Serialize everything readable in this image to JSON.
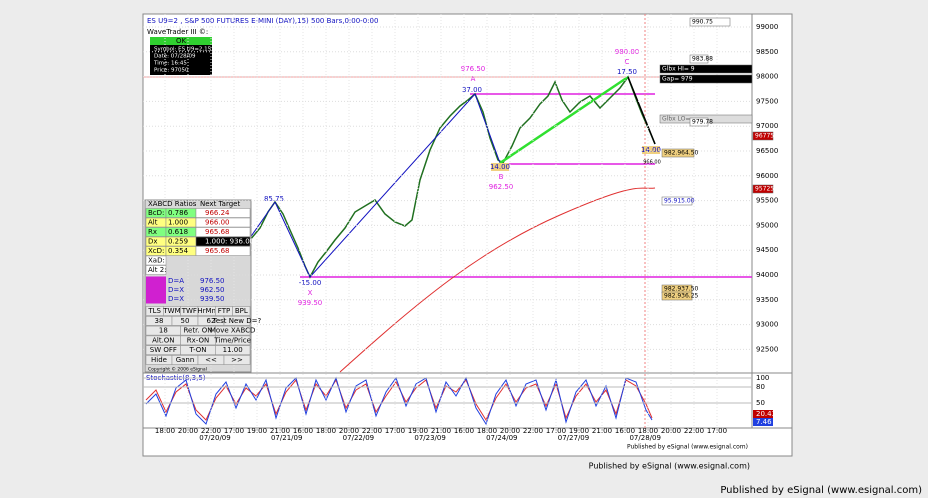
{
  "header": {
    "title": "ES U9=2 , S&P 500 FUTURES E-MINI (DAY),15) 500 Bars,0:00-0:00",
    "indicator": "WaveTrader III ©:"
  },
  "info_box": {
    "status": "OK",
    "lines": [
      "Symbol: ES U9=2,15",
      "Date: 07/28/09",
      "Time: 16:45",
      "Price: 97050"
    ]
  },
  "price_axis": [
    "99000",
    "98500",
    "98000",
    "97500",
    "97000",
    "96500",
    "96000",
    "95500",
    "95000",
    "94500",
    "94000",
    "93500",
    "93000",
    "92500"
  ],
  "stoch_axis": [
    "100",
    "80",
    "50",
    "20.43",
    "7.46"
  ],
  "time_axis": [
    "18:00",
    "20:00",
    "22:00",
    "17:00",
    "19:00",
    "21:00",
    "16:00",
    "18:00",
    "20:00",
    "22:00",
    "17:00",
    "19:00",
    "21:00",
    "16:00",
    "18:00",
    "20:00",
    "22:00",
    "17:00",
    "19:00",
    "21:00",
    "16:00",
    "18:00",
    "20:00",
    "22:00",
    "17:00"
  ],
  "dates": [
    "07/20/09",
    "07/21/09",
    "07/22/09",
    "07/23/09",
    "07/24/09",
    "07/27/09",
    "07/28/09"
  ],
  "annotations": [
    "976.50",
    "A",
    "37.00",
    "85.75",
    "-15.00",
    "X",
    "939.50",
    "14.00",
    "B",
    "962.50",
    "980.00",
    "C",
    "17.50",
    "14.00",
    "966.00"
  ],
  "right_boxes": [
    "Glbx HI= 9",
    "Gap= 979",
    "Glbx LO=",
    "990.75",
    "983.88",
    "979.78",
    "96775",
    "982.964.50",
    "95725",
    "95.915.00",
    "982.937.50",
    "982.936.25"
  ],
  "table": {
    "title": "XABCD Ratios",
    "target": "Next Target",
    "rows": [
      [
        "BcD:",
        "0.786",
        "966.24"
      ],
      [
        "Alt",
        "1.000",
        "966.00"
      ],
      [
        "Rx",
        "0.618",
        "965.68"
      ],
      [
        "Dx",
        "0.259",
        "1.000: 936.00"
      ],
      [
        "XcD:",
        "0.354",
        "965.68"
      ],
      [
        "XaD:",
        "",
        ""
      ],
      [
        "Alt 2:",
        "",
        ""
      ]
    ],
    "levels": [
      [
        "D=A",
        "976.50"
      ],
      [
        "D=X",
        "962.50"
      ],
      [
        "D=X",
        "939.50"
      ]
    ],
    "buttons": [
      [
        "TLS",
        "TWM",
        "TWF",
        "HrMn",
        "FTP",
        "BPL"
      ],
      [
        "38",
        "50",
        "62",
        "Test New D=?"
      ],
      [
        "18",
        "Retr. ON",
        "Move XABCD"
      ],
      [
        "Alt.ON",
        "Rx-ON",
        "Time/Price"
      ],
      [
        "SW OFF",
        "T-ON",
        "11.00"
      ],
      [
        "Hide",
        "Gann",
        "<<",
        ">>"
      ]
    ],
    "copyright": "Copyright © 2006 eSignal"
  },
  "stoch_title": "Stochastic(8,3,5)",
  "footer": "Published by eSignal (www.esignal.com)"
}
